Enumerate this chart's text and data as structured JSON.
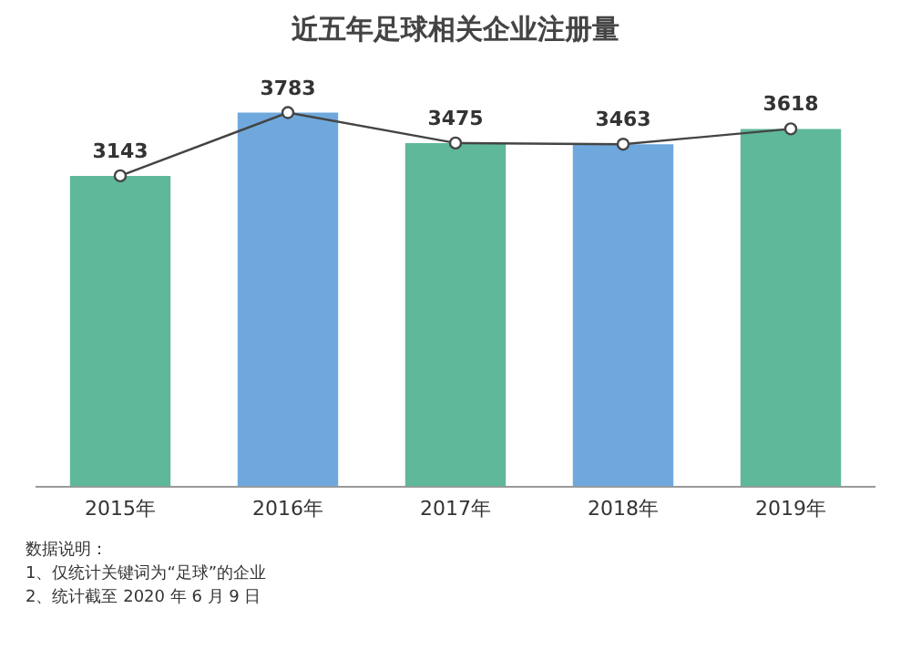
{
  "chart_data": {
    "type": "bar",
    "title": "近五年足球相关企业注册量",
    "categories": [
      "2015年",
      "2016年",
      "2017年",
      "2018年",
      "2019年"
    ],
    "series": [
      {
        "colors": [
          "#5fb89a",
          "#6fa8dc",
          "#5fb89a",
          "#6fa8dc",
          "#5fb89a"
        ],
        "values": [
          3143,
          3783,
          3475,
          3463,
          3618
        ]
      },
      {
        "type": "line",
        "color": "#444444",
        "marker": "circle",
        "values": [
          3143,
          3783,
          3475,
          3463,
          3618
        ],
        "value_labels": [
          "3143",
          "3783",
          "3475",
          "3463",
          "3618"
        ]
      }
    ],
    "tick_labels": "x",
    "grid": false,
    "legend": false,
    "annotations": [
      "数据说明：",
      "1、仅统计关键词为“足球”的企业",
      "2、统计截至 2020 年 6 月 9 日"
    ]
  }
}
